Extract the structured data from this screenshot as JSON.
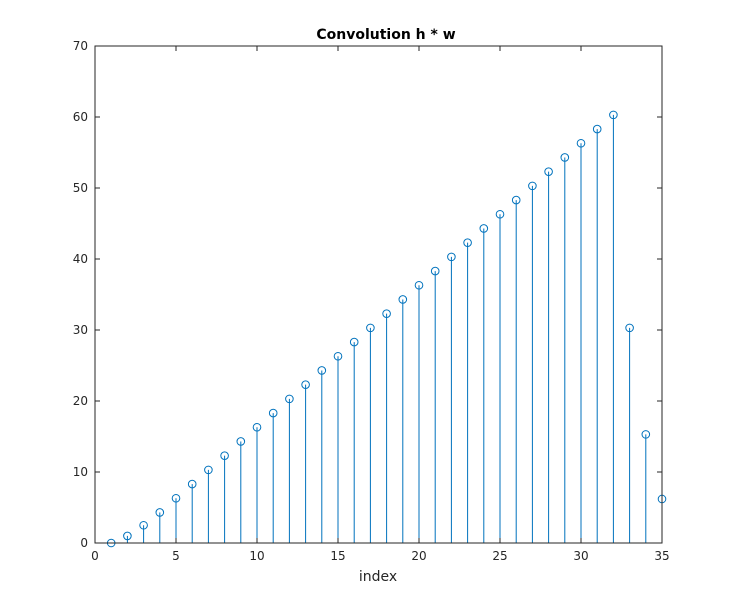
{
  "chart_data": {
    "type": "stem",
    "title": "Convolution h * w",
    "xlabel": "index",
    "ylabel": "",
    "xlim": [
      0,
      35
    ],
    "ylim": [
      0,
      70
    ],
    "xticks": [
      0,
      5,
      10,
      15,
      20,
      25,
      30,
      35
    ],
    "yticks": [
      0,
      10,
      20,
      30,
      40,
      50,
      60,
      70
    ],
    "grid": false,
    "color": "#0072BD",
    "x": [
      1,
      2,
      3,
      4,
      5,
      6,
      7,
      8,
      9,
      10,
      11,
      12,
      13,
      14,
      15,
      16,
      17,
      18,
      19,
      20,
      21,
      22,
      23,
      24,
      25,
      26,
      27,
      28,
      29,
      30,
      31,
      32,
      33,
      34,
      35
    ],
    "values": [
      0,
      1,
      2.5,
      4.3,
      6.3,
      8.3,
      10.3,
      12.3,
      14.3,
      16.3,
      18.3,
      20.3,
      22.3,
      24.3,
      26.3,
      28.3,
      30.3,
      32.3,
      34.3,
      36.3,
      38.3,
      40.3,
      42.3,
      44.3,
      46.3,
      48.3,
      50.3,
      52.3,
      54.3,
      56.3,
      58.3,
      60.3,
      30.3,
      15.3,
      6.2
    ]
  }
}
